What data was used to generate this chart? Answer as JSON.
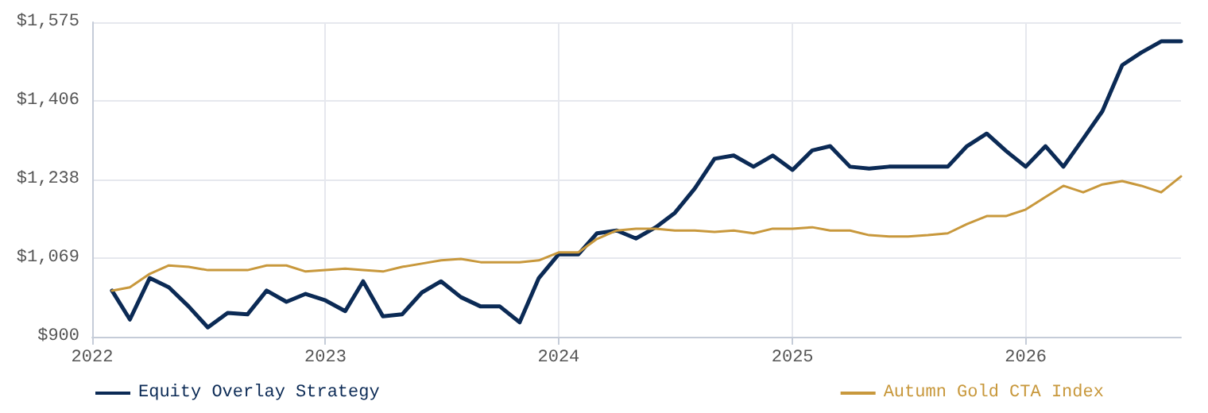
{
  "chart_data": {
    "type": "line",
    "x": [
      "2022-02",
      "2022-03",
      "2022-04",
      "2022-05",
      "2022-06",
      "2022-07",
      "2022-08",
      "2022-09",
      "2022-10",
      "2022-11",
      "2022-12",
      "2023-01",
      "2023-02",
      "2023-03",
      "2023-04",
      "2023-05",
      "2023-06",
      "2023-07",
      "2023-08",
      "2023-09",
      "2023-10",
      "2023-11",
      "2023-12",
      "2024-01",
      "2024-02",
      "2024-03",
      "2024-04",
      "2024-05",
      "2024-06",
      "2024-07",
      "2024-08",
      "2024-09",
      "2024-10",
      "2024-11",
      "2024-12",
      "2025-01",
      "2025-02",
      "2025-03",
      "2025-04",
      "2025-05",
      "2025-06",
      "2025-07",
      "2025-08",
      "2025-09",
      "2025-10",
      "2025-11",
      "2025-12",
      "2026-01",
      "2026-02",
      "2026-03",
      "2026-04",
      "2026-05",
      "2026-06",
      "2026-07",
      "2026-08",
      "2026-09"
    ],
    "series": [
      {
        "name": "Equity Overlay Strategy",
        "color": "#0b2a55",
        "values": [
          999,
          937,
          1026,
          1006,
          965,
          920,
          951,
          948,
          999,
          975,
          992,
          978,
          955,
          1019,
          944,
          948,
          995,
          1019,
          985,
          965,
          965,
          931,
          1026,
          1077,
          1077,
          1122,
          1128,
          1111,
          1135,
          1166,
          1218,
          1282,
          1289,
          1265,
          1289,
          1258,
          1300,
          1309,
          1265,
          1261,
          1265,
          1265,
          1265,
          1265,
          1309,
          1336,
          1299,
          1265,
          1309,
          1265,
          1325,
          1384,
          1483,
          1510,
          1534,
          1534
        ]
      },
      {
        "name": "Autumn Gold CTA Index",
        "color": "#c8983c",
        "values": [
          999,
          1006,
          1035,
          1053,
          1050,
          1043,
          1043,
          1043,
          1053,
          1053,
          1040,
          1043,
          1046,
          1043,
          1040,
          1050,
          1057,
          1064,
          1067,
          1060,
          1060,
          1060,
          1064,
          1081,
          1081,
          1110,
          1128,
          1132,
          1132,
          1128,
          1128,
          1125,
          1128,
          1122,
          1132,
          1132,
          1135,
          1128,
          1128,
          1118,
          1115,
          1115,
          1118,
          1122,
          1142,
          1159,
          1159,
          1173,
          1200,
          1224,
          1210,
          1227,
          1234,
          1224,
          1210,
          1244
        ]
      }
    ],
    "xlim": [
      "2022-01",
      "2026-09"
    ],
    "xticks": [
      "2022",
      "2023",
      "2024",
      "2025",
      "2026"
    ],
    "ylim": [
      900,
      1575
    ],
    "yticks": [
      {
        "value": 900,
        "label": "$900"
      },
      {
        "value": 1068.75,
        "label": "$1,069"
      },
      {
        "value": 1237.5,
        "label": "$1,238"
      },
      {
        "value": 1406.25,
        "label": "$1,406"
      },
      {
        "value": 1575,
        "label": "$1,575"
      }
    ],
    "grid": true,
    "legend": "bottom",
    "marker": "none",
    "line_style": "solid"
  }
}
